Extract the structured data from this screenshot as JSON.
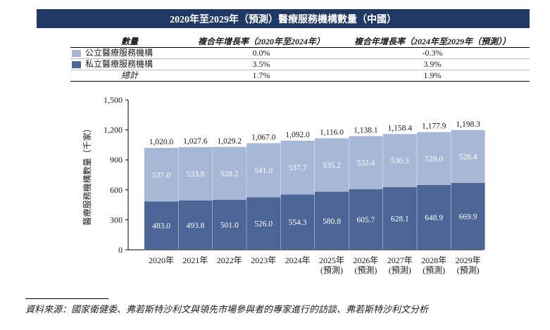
{
  "title": "2020年至2029年（預測）醫療服務機構數量（中國）",
  "summary": {
    "headers": [
      "數量",
      "複合年增長率（2020年至2024年）",
      "複合年增長率（2024年至2029年（預測））"
    ],
    "rows": [
      {
        "label": "公立醫療服務機構",
        "cagr_2020_2024": "0.0%",
        "cagr_2024_2029": "-0.3%",
        "color": "#a7b7d6"
      },
      {
        "label": "私立醫療服務機構",
        "cagr_2020_2024": "3.5%",
        "cagr_2024_2029": "3.9%",
        "color": "#4a6596"
      }
    ],
    "total": {
      "label": "總計",
      "cagr_2020_2024": "1.7%",
      "cagr_2024_2029": "1.9%"
    }
  },
  "chart_data": {
    "type": "bar",
    "stacked": true,
    "ylabel": "醫療服務機構數量（千家）",
    "ylim": [
      0,
      1500
    ],
    "yticks": [
      "0",
      "300",
      "600",
      "900",
      "1,200",
      "1,500"
    ],
    "categories": [
      "2020年",
      "2021年",
      "2022年",
      "2023年",
      "2024年",
      "2025年",
      "2026年",
      "2027年",
      "2028年",
      "2029年"
    ],
    "category_sublabels": [
      "",
      "",
      "",
      "",
      "",
      "(預測)",
      "(預測)",
      "(預測)",
      "(預測)",
      "(預測)"
    ],
    "series": [
      {
        "name": "私立醫療服務機構",
        "color": "#4a6596",
        "values": [
          483.0,
          493.8,
          501.0,
          526.0,
          554.3,
          580.8,
          605.7,
          628.1,
          648.9,
          669.9
        ],
        "labels": [
          "483.0",
          "493.8",
          "501.0",
          "526.0",
          "554.3",
          "580.8",
          "605.7",
          "628.1",
          "648.9",
          "669.9"
        ]
      },
      {
        "name": "公立醫療服務機構",
        "color": "#a7b7d6",
        "values": [
          537.0,
          533.8,
          528.2,
          541.0,
          537.7,
          535.2,
          532.4,
          530.3,
          529.0,
          528.4
        ],
        "labels": [
          "537.0",
          "533.8",
          "528.2",
          "541.0",
          "537.7",
          "535.2",
          "532.4",
          "530.3",
          "529.0",
          "528.4"
        ]
      }
    ],
    "totals": [
      1020.0,
      1027.6,
      1029.2,
      1067.0,
      1092.0,
      1116.0,
      1138.1,
      1158.4,
      1177.9,
      1198.3
    ],
    "total_labels": [
      "1,020.0",
      "1,027.6",
      "1,029.2",
      "1,067.0",
      "1,092.0",
      "1,116.0",
      "1,138.1",
      "1,158.4",
      "1,177.9",
      "1,198.3"
    ]
  },
  "source": "資料來源：國家衛健委、弗若斯特沙利文與領先市場參與者的專家進行的訪談、弗若斯特沙利文分析"
}
